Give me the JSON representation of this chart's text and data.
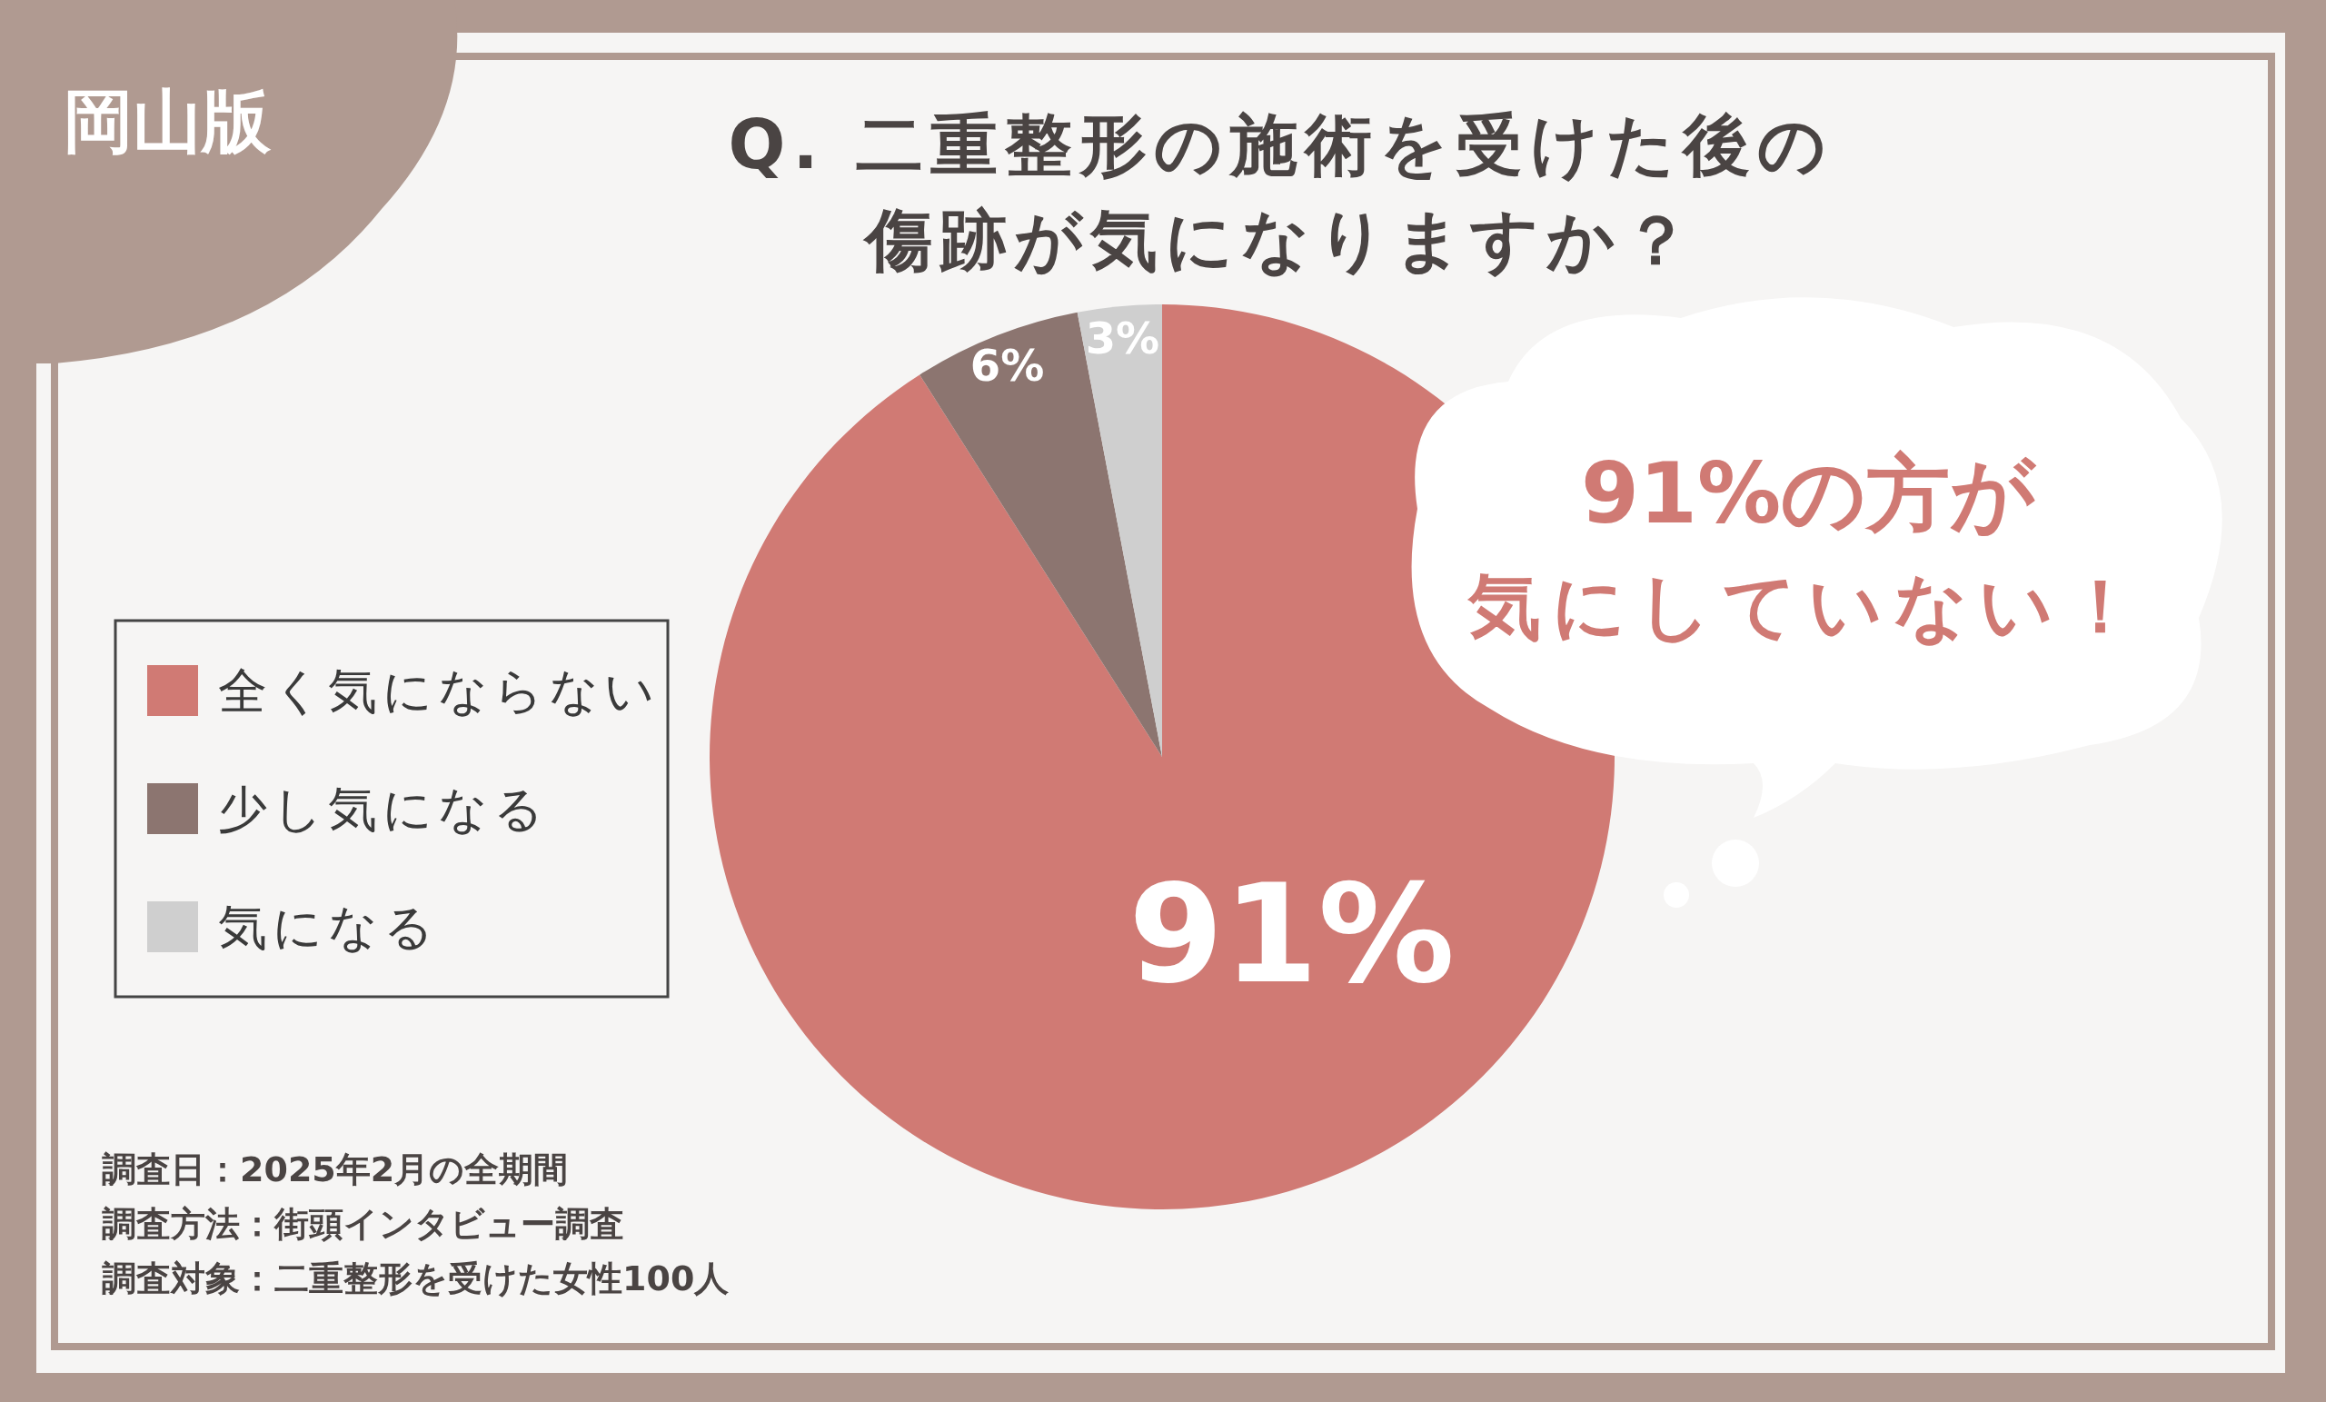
{
  "chart_data": {
    "type": "pie",
    "title": "Q. 二重整形の施術を受けた後の傷跡が気になりますか？",
    "categories": [
      "全く気にならない",
      "少し気になる",
      "気になる"
    ],
    "values": [
      91,
      6,
      3
    ],
    "colors": [
      "#d07a74",
      "#8c7570",
      "#cfcfcf"
    ],
    "value_labels": [
      "91%",
      "6%",
      "3%"
    ],
    "legend": "left",
    "annotations": [
      "岡山版",
      "91%の方が気にしていない！",
      "調査日：2025年2月の全期間",
      "調査方法：街頭インタビュー調査",
      "調査対象：二重整形を受けた女性100人"
    ]
  }
}
